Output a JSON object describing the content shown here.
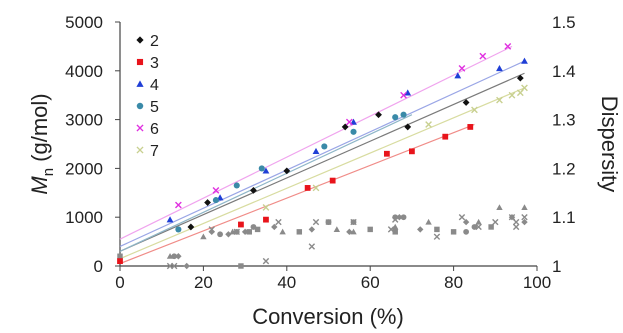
{
  "chart_data": {
    "type": "scatter",
    "xlabel": "Conversion (%)",
    "ylabel": "M",
    "ylabel_sub": "n",
    "ylabel_unit": " (g/mol)",
    "ylabel_right": "Dispersity",
    "xlim": [
      0,
      100
    ],
    "ylim": [
      0,
      5000
    ],
    "ylim_right": [
      1,
      1.5
    ],
    "x_ticks": [
      "0",
      "20",
      "40",
      "60",
      "80",
      "100"
    ],
    "y_ticks": [
      "0",
      "1000",
      "2000",
      "3000",
      "4000",
      "5000"
    ],
    "y2_ticks": [
      "1",
      "1.1",
      "1.2",
      "1.3",
      "1.4",
      "1.5"
    ],
    "grid": false,
    "legend_position": "top-left",
    "series": [
      {
        "name": "2",
        "color": "#111111",
        "marker": "diamond",
        "line_color": "#7a7a7a",
        "fit": [
          0,
          300,
          97,
          3950
        ],
        "mn": [
          [
            17,
            800
          ],
          [
            21,
            1300
          ],
          [
            32,
            1550
          ],
          [
            40,
            1950
          ],
          [
            54,
            2850
          ],
          [
            62,
            3100
          ],
          [
            69,
            2850
          ],
          [
            83,
            3350
          ],
          [
            96,
            3850
          ]
        ],
        "dispersity": [
          [
            14,
            1.02
          ],
          [
            16,
            1.0
          ],
          [
            22,
            1.07
          ],
          [
            26,
            1.065
          ],
          [
            30,
            1.07
          ],
          [
            37,
            1.08
          ],
          [
            46,
            1.075
          ],
          [
            55,
            1.07
          ],
          [
            67,
            1.1
          ],
          [
            72,
            1.075
          ],
          [
            83,
            1.09
          ],
          [
            94,
            1.1
          ],
          [
            97,
            1.09
          ]
        ]
      },
      {
        "name": "3",
        "color": "#e8141b",
        "marker": "square",
        "line_color": "#f08c88",
        "fit": [
          0,
          50,
          85,
          2900
        ],
        "mn": [
          [
            0,
            100
          ],
          [
            29,
            850
          ],
          [
            35,
            950
          ],
          [
            45,
            1600
          ],
          [
            51,
            1750
          ],
          [
            64,
            2300
          ],
          [
            70,
            2350
          ],
          [
            78,
            2650
          ],
          [
            84,
            2850
          ]
        ],
        "dispersity": [
          [
            0,
            1.02
          ],
          [
            29,
            1.0
          ],
          [
            31,
            1.07
          ],
          [
            33,
            1.075
          ],
          [
            43,
            1.07
          ],
          [
            50,
            1.09
          ],
          [
            60,
            1.075
          ],
          [
            66,
            1.07
          ],
          [
            76,
            1.075
          ],
          [
            80,
            1.07
          ],
          [
            89,
            1.08
          ]
        ]
      },
      {
        "name": "4",
        "color": "#1f3fd6",
        "marker": "triangle",
        "line_color": "#9aa6e6",
        "fit": [
          0,
          400,
          97,
          4200
        ],
        "mn": [
          [
            12,
            950
          ],
          [
            24,
            1400
          ],
          [
            35,
            1950
          ],
          [
            47,
            2350
          ],
          [
            56,
            2950
          ],
          [
            69,
            3550
          ],
          [
            81,
            3900
          ],
          [
            91,
            4050
          ],
          [
            97,
            4200
          ]
        ],
        "dispersity": [
          [
            12,
            1.02
          ],
          [
            20,
            1.06
          ],
          [
            27,
            1.07
          ],
          [
            39,
            1.07
          ],
          [
            52,
            1.075
          ],
          [
            56,
            1.07
          ],
          [
            66,
            1.08
          ],
          [
            74,
            1.09
          ],
          [
            86,
            1.09
          ],
          [
            91,
            1.12
          ],
          [
            97,
            1.12
          ]
        ]
      },
      {
        "name": "5",
        "color": "#3a8aa8",
        "marker": "circle",
        "line_color": "#8fb6c8",
        "fit": [
          0,
          300,
          70,
          3100
        ],
        "mn": [
          [
            14,
            750
          ],
          [
            23,
            1350
          ],
          [
            28,
            1650
          ],
          [
            34,
            2000
          ],
          [
            49,
            2450
          ],
          [
            56,
            2750
          ],
          [
            66,
            3050
          ],
          [
            68,
            3100
          ]
        ],
        "dispersity": [
          [
            13,
            1.02
          ],
          [
            24,
            1.065
          ],
          [
            28,
            1.07
          ],
          [
            32,
            1.08
          ],
          [
            50,
            1.09
          ],
          [
            56,
            1.09
          ],
          [
            66,
            1.1
          ],
          [
            68,
            1.1
          ],
          [
            83,
            1.07
          ],
          [
            85,
            1.08
          ]
        ]
      },
      {
        "name": "6",
        "color": "#e030e0",
        "marker": "cross",
        "line_color": "#f0a4ee",
        "fit": [
          0,
          550,
          94,
          4500
        ],
        "mn": [
          [
            14,
            1250
          ],
          [
            23,
            1550
          ],
          [
            55,
            2950
          ],
          [
            68,
            3500
          ],
          [
            82,
            4050
          ],
          [
            87,
            4300
          ],
          [
            93,
            4500
          ]
        ],
        "dispersity": [
          [
            12,
            1.0
          ],
          [
            22,
            1.075
          ],
          [
            35,
            1.01
          ],
          [
            46,
            1.04
          ],
          [
            56,
            1.09
          ],
          [
            66,
            1.095
          ],
          [
            82,
            1.1
          ],
          [
            90,
            1.09
          ],
          [
            94,
            1.1
          ],
          [
            95,
            1.08
          ]
        ]
      },
      {
        "name": "7",
        "color": "#c8d090",
        "marker": "cross",
        "line_color": "#d8dca0",
        "fit": [
          0,
          150,
          97,
          3650
        ],
        "mn": [
          [
            35,
            1200
          ],
          [
            47,
            1600
          ],
          [
            74,
            2900
          ],
          [
            85,
            3200
          ],
          [
            91,
            3400
          ],
          [
            94,
            3500
          ],
          [
            96,
            3550
          ],
          [
            97,
            3650
          ]
        ],
        "dispersity": [
          [
            13,
            1.0
          ],
          [
            28,
            1.07
          ],
          [
            38,
            1.09
          ],
          [
            47,
            1.09
          ],
          [
            65,
            1.075
          ],
          [
            76,
            1.06
          ],
          [
            86,
            1.08
          ],
          [
            95,
            1.09
          ],
          [
            97,
            1.1
          ]
        ]
      }
    ]
  }
}
